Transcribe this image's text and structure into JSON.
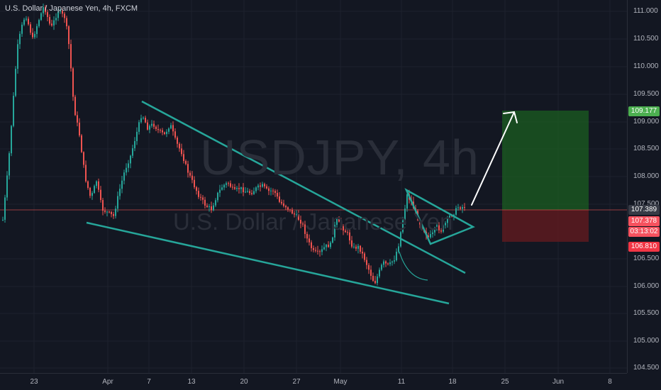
{
  "symbol": {
    "title": "U.S. Dollar / Japanese Yen, 4h, FXCM"
  },
  "watermark": {
    "main": "USDJPY, 4h",
    "sub": "U.S. Dollar / Japanese Yen"
  },
  "price_axis": {
    "ticks": [
      "111.000",
      "110.500",
      "110.000",
      "109.500",
      "109.000",
      "108.500",
      "108.000",
      "107.500",
      "106.500",
      "106.000",
      "105.500",
      "105.000",
      "104.500"
    ]
  },
  "time_axis": {
    "ticks": [
      "23",
      "Apr",
      "7",
      "13",
      "20",
      "27",
      "May",
      "11",
      "18",
      "25",
      "Jun",
      "8"
    ]
  },
  "price_tags": {
    "target": "109.177",
    "last": "107.389",
    "entry": "107.378",
    "countdown": "03:13:02",
    "stop": "106.810"
  },
  "colors": {
    "background": "#131722",
    "up": "#26a69a",
    "down": "#ef5350",
    "pattern_lines": "#26a69a",
    "target_zone": "#1b5e20",
    "stop_zone": "#5d1a1f",
    "target_tag": "#4caf50",
    "stop_tag": "#f23645",
    "entry_tag": "#f7525f",
    "last_tag": "#363a45",
    "arrow": "#ffffff"
  }
}
